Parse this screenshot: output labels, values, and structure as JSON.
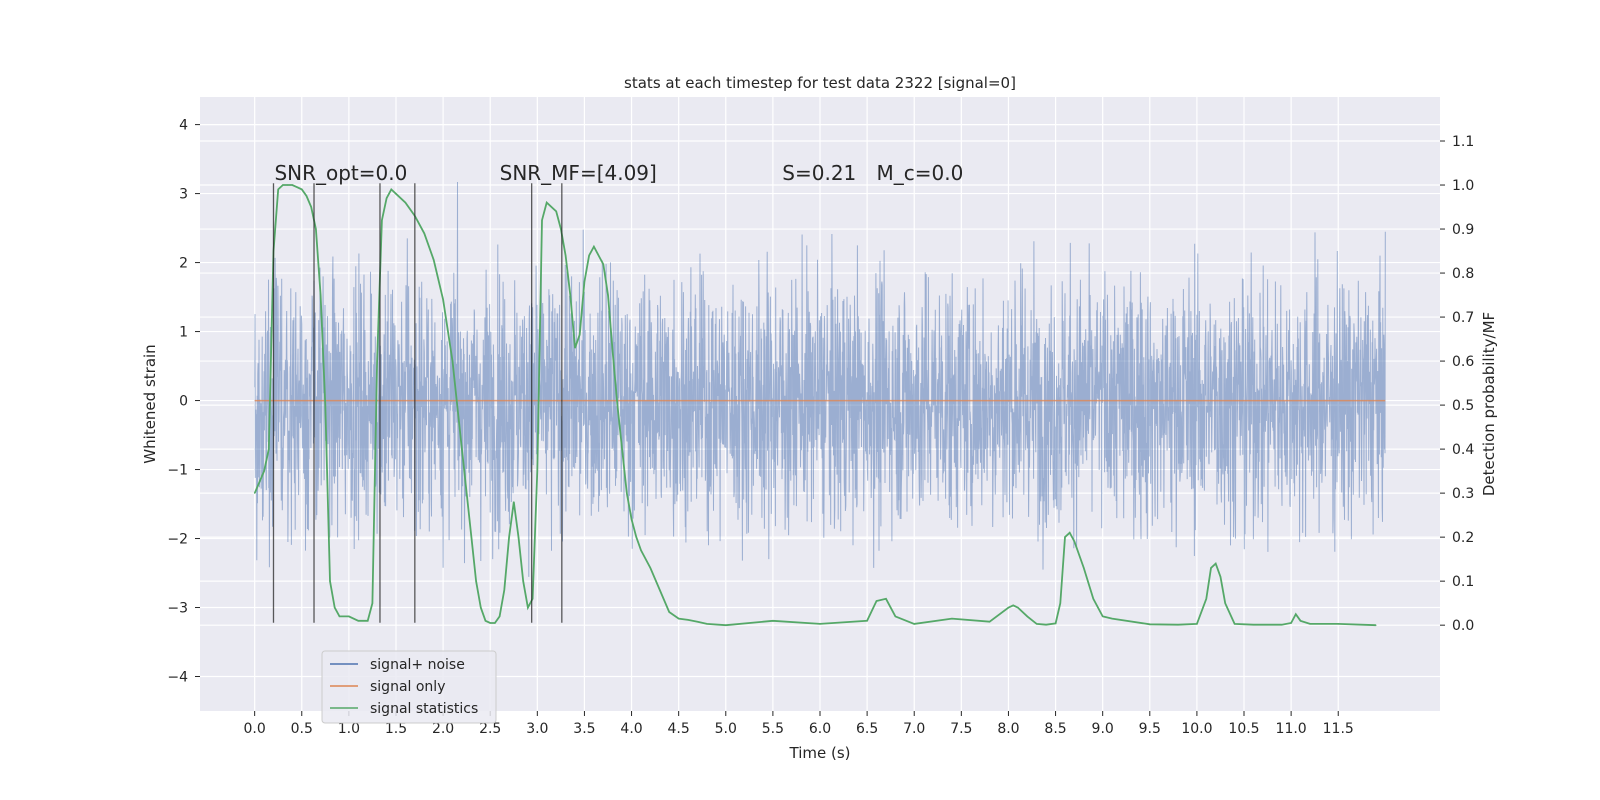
{
  "chart_data": {
    "type": "line",
    "title": "stats at each timestep for test data 2322 [signal=0]",
    "xlabel": "Time (s)",
    "ylabel_left": "Whitened strain",
    "ylabel_right": "Detection probability/MF",
    "xlim": [
      -0.58,
      12.58
    ],
    "ylim_left": [
      -4.5,
      4.4
    ],
    "ylim_right": [
      -0.195,
      1.2
    ],
    "x_ticks": [
      0.0,
      0.5,
      1.0,
      1.5,
      2.0,
      2.5,
      3.0,
      3.5,
      4.0,
      4.5,
      5.0,
      5.5,
      6.0,
      6.5,
      7.0,
      7.5,
      8.0,
      8.5,
      9.0,
      9.5,
      10.0,
      10.5,
      11.0,
      11.5
    ],
    "x_tick_labels": [
      "0.0",
      "0.5",
      "1.0",
      "1.5",
      "2.0",
      "2.5",
      "3.0",
      "3.5",
      "4.0",
      "4.5",
      "5.0",
      "5.5",
      "6.0",
      "6.5",
      "7.0",
      "7.5",
      "8.0",
      "8.5",
      "9.0",
      "9.5",
      "10.0",
      "10.5",
      "11.0",
      "11.5"
    ],
    "y_left_ticks": [
      4,
      3,
      2,
      1,
      0,
      -1,
      -2,
      -3,
      -4
    ],
    "y_left_tick_labels": [
      "4",
      "3",
      "2",
      "1",
      "0",
      "−1",
      "−2",
      "−3",
      "−4"
    ],
    "y_right_ticks": [
      1.1,
      1.0,
      0.9,
      0.8,
      0.7,
      0.6,
      0.5,
      0.4,
      0.3,
      0.2,
      0.1,
      0.0
    ],
    "y_right_tick_labels": [
      "1.1",
      "1.0",
      "0.9",
      "0.8",
      "0.7",
      "0.6",
      "0.5",
      "0.4",
      "0.3",
      "0.2",
      "0.1",
      "0.0"
    ],
    "grid": true,
    "legend_position": "bottom-left",
    "series": [
      {
        "name": "signal+ noise",
        "color": "#4c72b0",
        "kind": "noise",
        "x_range": [
          0.0,
          12.0
        ],
        "typical_amplitude": 1.0,
        "peak_amplitude": 4.0,
        "axis": "left"
      },
      {
        "name": "signal only",
        "color": "#dd8452",
        "kind": "line",
        "axis": "left",
        "x": [
          0.0,
          12.0
        ],
        "y": [
          0.0,
          0.0
        ]
      },
      {
        "name": "signal statistics",
        "color": "#55a868",
        "kind": "line",
        "axis": "right",
        "x": [
          0.0,
          0.1,
          0.15,
          0.2,
          0.25,
          0.3,
          0.35,
          0.4,
          0.45,
          0.5,
          0.55,
          0.6,
          0.65,
          0.7,
          0.75,
          0.8,
          0.85,
          0.9,
          1.0,
          1.1,
          1.2,
          1.25,
          1.3,
          1.35,
          1.4,
          1.45,
          1.5,
          1.6,
          1.7,
          1.8,
          1.9,
          2.0,
          2.1,
          2.2,
          2.3,
          2.35,
          2.4,
          2.45,
          2.5,
          2.55,
          2.6,
          2.65,
          2.7,
          2.75,
          2.8,
          2.85,
          2.9,
          2.95,
          3.0,
          3.05,
          3.1,
          3.2,
          3.25,
          3.3,
          3.35,
          3.4,
          3.45,
          3.5,
          3.55,
          3.6,
          3.65,
          3.7,
          3.75,
          3.8,
          3.85,
          3.9,
          3.95,
          4.0,
          4.05,
          4.1,
          4.2,
          4.3,
          4.4,
          4.5,
          4.6,
          4.7,
          4.8,
          5.0,
          5.5,
          6.0,
          6.5,
          6.6,
          6.7,
          6.8,
          7.0,
          7.4,
          7.8,
          8.0,
          8.05,
          8.1,
          8.2,
          8.3,
          8.4,
          8.5,
          8.55,
          8.6,
          8.65,
          8.7,
          8.8,
          8.9,
          9.0,
          9.1,
          9.5,
          9.8,
          10.0,
          10.1,
          10.15,
          10.2,
          10.25,
          10.3,
          10.4,
          10.6,
          10.9,
          11.0,
          11.05,
          11.1,
          11.2,
          11.5,
          11.9
        ],
        "y": [
          0.3,
          0.35,
          0.4,
          0.85,
          0.99,
          1.0,
          1.0,
          1.0,
          0.995,
          0.99,
          0.975,
          0.95,
          0.9,
          0.75,
          0.5,
          0.1,
          0.04,
          0.02,
          0.02,
          0.01,
          0.01,
          0.05,
          0.6,
          0.92,
          0.97,
          0.99,
          0.98,
          0.96,
          0.93,
          0.89,
          0.83,
          0.74,
          0.6,
          0.4,
          0.2,
          0.1,
          0.04,
          0.01,
          0.005,
          0.005,
          0.02,
          0.08,
          0.2,
          0.28,
          0.2,
          0.1,
          0.04,
          0.06,
          0.35,
          0.92,
          0.96,
          0.94,
          0.9,
          0.84,
          0.75,
          0.63,
          0.66,
          0.78,
          0.84,
          0.86,
          0.84,
          0.82,
          0.75,
          0.62,
          0.5,
          0.4,
          0.3,
          0.24,
          0.2,
          0.17,
          0.13,
          0.08,
          0.03,
          0.015,
          0.012,
          0.008,
          0.003,
          0.0,
          0.01,
          0.003,
          0.01,
          0.055,
          0.06,
          0.02,
          0.003,
          0.015,
          0.008,
          0.04,
          0.045,
          0.04,
          0.02,
          0.003,
          0.001,
          0.004,
          0.05,
          0.2,
          0.21,
          0.19,
          0.13,
          0.06,
          0.02,
          0.015,
          0.002,
          0.001,
          0.003,
          0.06,
          0.13,
          0.14,
          0.11,
          0.05,
          0.003,
          0.001,
          0.001,
          0.005,
          0.025,
          0.01,
          0.003,
          0.003,
          0.0
        ]
      }
    ],
    "vertical_markers": {
      "color": "#262626",
      "y_bottom": -3.22,
      "y_top": 3.15,
      "x": [
        0.2,
        0.63,
        1.33,
        1.7,
        2.94,
        3.26
      ]
    },
    "annotations": [
      {
        "name": "snr-opt-annotation",
        "text": "SNR_opt=0.0",
        "x": 0.21,
        "y": 3.2
      },
      {
        "name": "snr-mf-annotation",
        "text": "SNR_MF=[4.09]",
        "x": 2.6,
        "y": 3.2
      },
      {
        "name": "s-annotation",
        "text": "S=0.21",
        "x": 5.6,
        "y": 3.2
      },
      {
        "name": "mc-annotation",
        "text": "M_c=0.0",
        "x": 6.6,
        "y": 3.2
      }
    ]
  }
}
